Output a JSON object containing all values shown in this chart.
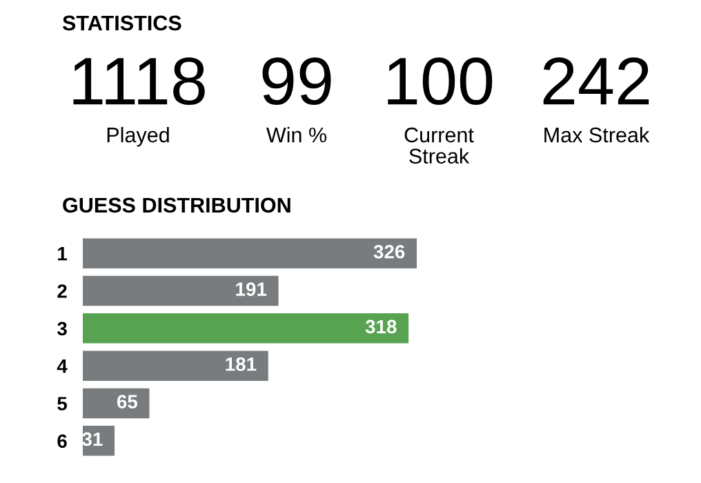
{
  "chart_data": [
    {
      "type": "other",
      "title": "STATISTICS",
      "annotations": [
        "1118",
        "Played",
        "99",
        "Win %",
        "100",
        "Current\nStreak",
        "242",
        "Max Streak"
      ]
    },
    {
      "type": "bar",
      "title": "GUESS DISTRIBUTION",
      "orientation": "horizontal",
      "categories": [
        "1",
        "2",
        "3",
        "4",
        "5",
        "6"
      ],
      "values": [
        326,
        191,
        318,
        181,
        65,
        31
      ],
      "colors": [
        "#787c7e",
        "#787c7e",
        "#58a351",
        "#787c7e",
        "#787c7e",
        "#787c7e"
      ],
      "data_labels": true,
      "tick_labels": "y",
      "grid": false,
      "legend": false
    }
  ]
}
